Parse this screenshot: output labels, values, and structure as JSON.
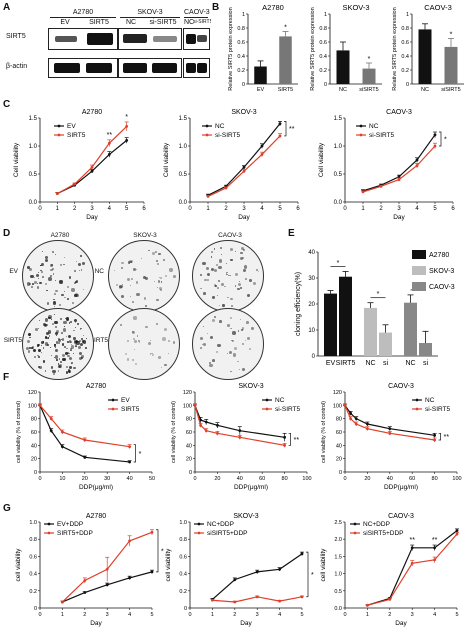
{
  "panels": {
    "A": "A",
    "B": "B",
    "C": "C",
    "D": "D",
    "E": "E",
    "F": "F",
    "G": "G"
  },
  "blot": {
    "row_labels": [
      "SIRT5",
      "β-actin"
    ],
    "groups": [
      {
        "cell_line": "A2780",
        "lanes": [
          "EV",
          "SIRT5"
        ]
      },
      {
        "cell_line": "SKOV-3",
        "lanes": [
          "NC",
          "si-SIRT5"
        ]
      },
      {
        "cell_line": "CAOV-3",
        "lanes": [
          "NC",
          "si-SIRT5"
        ]
      }
    ]
  },
  "dishes": {
    "columns": [
      "A2780",
      "SKOV-3",
      "CAOV-3"
    ],
    "row_labels": [
      [
        "EV",
        "NC"
      ],
      [
        "SIRT5",
        "siSIRT5"
      ]
    ]
  },
  "chart_data": [
    {
      "id": "B1",
      "type": "bar",
      "title": "A2780",
      "ylabel": "Relative SIRT5 protein expression",
      "categories": [
        "EV",
        "SIRT5"
      ],
      "values": [
        0.25,
        0.68
      ],
      "errors": [
        0.08,
        0.07
      ],
      "colors": [
        "#111111",
        "#777777"
      ],
      "ylim": [
        0,
        1.0
      ],
      "yticks": [
        "0",
        "0.2",
        "0.4",
        "0.6",
        "0.8",
        "1"
      ],
      "annotations": [
        {
          "category": "SIRT5",
          "text": "*"
        }
      ]
    },
    {
      "id": "B2",
      "type": "bar",
      "title": "SKOV-3",
      "ylabel": "Relative SIRT5 protein expression",
      "categories": [
        "NC",
        "siSIRT5"
      ],
      "values": [
        0.48,
        0.22
      ],
      "errors": [
        0.12,
        0.08
      ],
      "colors": [
        "#111111",
        "#777777"
      ],
      "ylim": [
        0,
        1.0
      ],
      "yticks": [
        "0",
        "0.2",
        "0.4",
        "0.6",
        "0.8",
        "1"
      ],
      "annotations": [
        {
          "category": "siSIRT5",
          "text": "*"
        }
      ]
    },
    {
      "id": "B3",
      "type": "bar",
      "title": "CAOV-3",
      "ylabel": "Relative SIRT5 protein expression",
      "categories": [
        "NC",
        "siSIRT5"
      ],
      "values": [
        0.78,
        0.53
      ],
      "errors": [
        0.08,
        0.12
      ],
      "colors": [
        "#111111",
        "#777777"
      ],
      "ylim": [
        0,
        1.0
      ],
      "yticks": [
        "0",
        "0.2",
        "0.4",
        "0.6",
        "0.8",
        "1"
      ],
      "annotations": [
        {
          "category": "siSIRT5",
          "text": "*"
        }
      ]
    },
    {
      "id": "C1",
      "type": "line",
      "title": "A2780",
      "xlabel": "Day",
      "ylabel": "Cell viability",
      "x": [
        1,
        2,
        3,
        4,
        5
      ],
      "xlim": [
        0,
        6
      ],
      "ylim": [
        0,
        1.5
      ],
      "yticks": [
        "0.0",
        "0.5",
        "1.0",
        "1.5"
      ],
      "series": [
        {
          "name": "EV",
          "values": [
            0.15,
            0.3,
            0.55,
            0.85,
            1.1
          ],
          "color": "#111111",
          "errors": [
            0.02,
            0.02,
            0.03,
            0.05,
            0.05
          ]
        },
        {
          "name": "SIRT5",
          "values": [
            0.15,
            0.32,
            0.62,
            1.05,
            1.35
          ],
          "color": "#e0402a",
          "errors": [
            0.02,
            0.02,
            0.04,
            0.06,
            0.08
          ]
        }
      ],
      "annotations": [
        {
          "x": 4,
          "text": "**"
        },
        {
          "x": 5,
          "text": "*"
        }
      ]
    },
    {
      "id": "C2",
      "type": "line",
      "title": "SKOV-3",
      "xlabel": "Day",
      "ylabel": "Cell viability",
      "x": [
        1,
        2,
        3,
        4,
        5
      ],
      "xlim": [
        0,
        6
      ],
      "ylim": [
        0,
        1.5
      ],
      "yticks": [
        "0.0",
        "0.5",
        "1.0",
        "1.5"
      ],
      "series": [
        {
          "name": "NC",
          "values": [
            0.12,
            0.28,
            0.62,
            1.0,
            1.4
          ],
          "color": "#111111",
          "errors": [
            0.02,
            0.02,
            0.03,
            0.04,
            0.04
          ]
        },
        {
          "name": "si-SIRT5",
          "values": [
            0.1,
            0.25,
            0.55,
            0.85,
            1.18
          ],
          "color": "#e0402a",
          "errors": [
            0.02,
            0.02,
            0.03,
            0.04,
            0.04
          ]
        }
      ],
      "annotations": [
        {
          "x": 5,
          "text": "**"
        }
      ]
    },
    {
      "id": "C3",
      "type": "line",
      "title": "CAOV-3",
      "xlabel": "Day",
      "ylabel": "Cell viability",
      "x": [
        1,
        2,
        3,
        4,
        5
      ],
      "xlim": [
        0,
        6
      ],
      "ylim": [
        0,
        1.5
      ],
      "yticks": [
        "0.0",
        "0.5",
        "1.0",
        "1.5"
      ],
      "series": [
        {
          "name": "NC",
          "values": [
            0.2,
            0.3,
            0.45,
            0.75,
            1.2
          ],
          "color": "#111111",
          "errors": [
            0.02,
            0.02,
            0.03,
            0.04,
            0.05
          ]
        },
        {
          "name": "si-SIRT5",
          "values": [
            0.18,
            0.28,
            0.4,
            0.65,
            1.0
          ],
          "color": "#e0402a",
          "errors": [
            0.02,
            0.02,
            0.03,
            0.04,
            0.05
          ]
        }
      ],
      "annotations": [
        {
          "x": 5,
          "text": "*"
        }
      ]
    },
    {
      "id": "E",
      "type": "bar",
      "ylabel": "cloning efficiency(%)",
      "categories": [
        "EV",
        "SIRT5",
        "NC",
        "si",
        "NC",
        "si"
      ],
      "values": [
        24,
        30.5,
        18.5,
        9,
        20.5,
        5
      ],
      "errors": [
        1.2,
        2,
        2,
        3,
        3,
        4.5
      ],
      "colors": [
        "#111111",
        "#111111",
        "#bdbdbd",
        "#bdbdbd",
        "#888888",
        "#888888"
      ],
      "ylim": [
        0,
        40
      ],
      "yticks": [
        "0",
        "10",
        "20",
        "30",
        "40"
      ],
      "legend": [
        {
          "name": "A2780",
          "color": "#111111"
        },
        {
          "name": "SKOV-3",
          "color": "#bdbdbd"
        },
        {
          "name": "CAOV-3",
          "color": "#888888"
        }
      ],
      "annotations": [
        {
          "text": "*",
          "from": 0,
          "to": 1
        },
        {
          "text": "*",
          "from": 2,
          "to": 3
        },
        {
          "text": "*",
          "from": 4,
          "to": 5
        }
      ]
    },
    {
      "id": "F1",
      "type": "line",
      "title": "A2780",
      "xlabel": "DDP(μg/ml)",
      "ylabel": "cell viability (% of control)",
      "x": [
        0,
        5,
        10,
        20,
        40
      ],
      "xlim": [
        0,
        50
      ],
      "xticks": [
        "0",
        "10",
        "20",
        "30",
        "40",
        "50"
      ],
      "ylim": [
        0,
        120
      ],
      "yticks": [
        "0",
        "20",
        "40",
        "60",
        "80",
        "100",
        "120"
      ],
      "series": [
        {
          "name": "EV",
          "values": [
            100,
            62,
            38,
            22,
            15
          ],
          "color": "#111111",
          "errors": [
            2,
            3,
            3,
            2,
            2
          ]
        },
        {
          "name": "SIRT5",
          "values": [
            100,
            80,
            60,
            48,
            38
          ],
          "color": "#e0402a",
          "errors": [
            2,
            3,
            3,
            3,
            3
          ]
        }
      ],
      "annotations": [
        {
          "x": 40,
          "text": "*"
        }
      ]
    },
    {
      "id": "F2",
      "type": "line",
      "title": "SKOV-3",
      "xlabel": "DDP(μg/ml)",
      "ylabel": "cell viability (% of control)",
      "x": [
        0,
        5,
        10,
        20,
        40,
        80
      ],
      "xlim": [
        0,
        100
      ],
      "xticks": [
        "0",
        "20",
        "40",
        "60",
        "80",
        "100"
      ],
      "ylim": [
        0,
        120
      ],
      "yticks": [
        "0",
        "20",
        "40",
        "60",
        "80",
        "100",
        "120"
      ],
      "series": [
        {
          "name": "NC",
          "values": [
            100,
            78,
            75,
            70,
            62,
            52
          ],
          "color": "#111111",
          "errors": [
            2,
            4,
            4,
            4,
            6,
            6
          ]
        },
        {
          "name": "si-SIRT5",
          "values": [
            100,
            70,
            62,
            58,
            52,
            40
          ],
          "color": "#e0402a",
          "errors": [
            2,
            3,
            3,
            3,
            3,
            3
          ]
        }
      ],
      "annotations": [
        {
          "x": 80,
          "text": "**"
        }
      ]
    },
    {
      "id": "F3",
      "type": "line",
      "title": "CAOV-3",
      "xlabel": "DDP(μg/ml)",
      "ylabel": "cell viability (% of control)",
      "x": [
        0,
        5,
        10,
        20,
        40,
        80
      ],
      "xlim": [
        0,
        100
      ],
      "xticks": [
        "0",
        "20",
        "40",
        "60",
        "80",
        "100"
      ],
      "ylim": [
        0,
        120
      ],
      "yticks": [
        "0",
        "20",
        "40",
        "60",
        "80",
        "100",
        "120"
      ],
      "series": [
        {
          "name": "NC",
          "values": [
            100,
            88,
            80,
            72,
            65,
            55
          ],
          "color": "#111111",
          "errors": [
            2,
            3,
            3,
            3,
            3,
            3
          ]
        },
        {
          "name": "si-SIRT5",
          "values": [
            100,
            80,
            72,
            65,
            58,
            48
          ],
          "color": "#e0402a",
          "errors": [
            2,
            3,
            3,
            3,
            3,
            3
          ]
        }
      ],
      "annotations": [
        {
          "x": 80,
          "text": "**"
        }
      ]
    },
    {
      "id": "G1",
      "type": "line",
      "title": "A2780",
      "xlabel": "Day",
      "ylabel": "cell viability",
      "x": [
        1,
        2,
        3,
        4,
        5
      ],
      "xlim": [
        0,
        5
      ],
      "ylim": [
        0,
        1.0
      ],
      "yticks": [
        "0",
        "0.2",
        "0.4",
        "0.6",
        "0.8",
        "1.0"
      ],
      "series": [
        {
          "name": "EV+DDP",
          "values": [
            0.07,
            0.18,
            0.27,
            0.35,
            0.42
          ],
          "color": "#111111",
          "errors": [
            0.01,
            0.01,
            0.02,
            0.02,
            0.02
          ]
        },
        {
          "name": "SIRT5+DDP",
          "values": [
            0.07,
            0.32,
            0.45,
            0.78,
            0.88
          ],
          "color": "#e0402a",
          "errors": [
            0.01,
            0.03,
            0.14,
            0.06,
            0.03
          ]
        }
      ],
      "annotations": [
        {
          "x": 5,
          "text": "*"
        }
      ]
    },
    {
      "id": "G2",
      "type": "line",
      "title": "SKOV-3",
      "xlabel": "Day",
      "ylabel": "cell viability",
      "x": [
        1,
        2,
        3,
        4,
        5
      ],
      "xlim": [
        0,
        5
      ],
      "ylim": [
        0,
        1.0
      ],
      "yticks": [
        "0",
        "0.2",
        "0.4",
        "0.6",
        "0.8",
        "1.0"
      ],
      "series": [
        {
          "name": "NC+DDP",
          "values": [
            0.1,
            0.33,
            0.42,
            0.45,
            0.63
          ],
          "color": "#111111",
          "errors": [
            0.01,
            0.02,
            0.02,
            0.02,
            0.02
          ]
        },
        {
          "name": "siSIRT5+DDP",
          "values": [
            0.09,
            0.07,
            0.13,
            0.08,
            0.13
          ],
          "color": "#e0402a",
          "errors": [
            0.01,
            0.01,
            0.01,
            0.01,
            0.01
          ]
        }
      ],
      "annotations": [
        {
          "x": 5,
          "text": "*"
        }
      ]
    },
    {
      "id": "G3",
      "type": "line",
      "title": "CAOV-3",
      "xlabel": "Day",
      "ylabel": "cell viability",
      "x": [
        1,
        2,
        3,
        4,
        5
      ],
      "xlim": [
        0,
        5
      ],
      "ylim": [
        0,
        2.5
      ],
      "yticks": [
        "0.0",
        "0.5",
        "1.0",
        "1.5",
        "2.0",
        "2.5"
      ],
      "series": [
        {
          "name": "NC+DDP",
          "values": [
            0.08,
            0.28,
            1.75,
            1.75,
            2.25
          ],
          "color": "#111111",
          "errors": [
            0.01,
            0.02,
            0.08,
            0.08,
            0.05
          ]
        },
        {
          "name": "siSIRT5+DDP",
          "values": [
            0.08,
            0.25,
            1.3,
            1.4,
            2.15
          ],
          "color": "#e0402a",
          "errors": [
            0.01,
            0.02,
            0.08,
            0.08,
            0.05
          ]
        }
      ],
      "annotations": [
        {
          "x": 3,
          "text": "**"
        },
        {
          "x": 4,
          "text": "**"
        }
      ]
    }
  ]
}
